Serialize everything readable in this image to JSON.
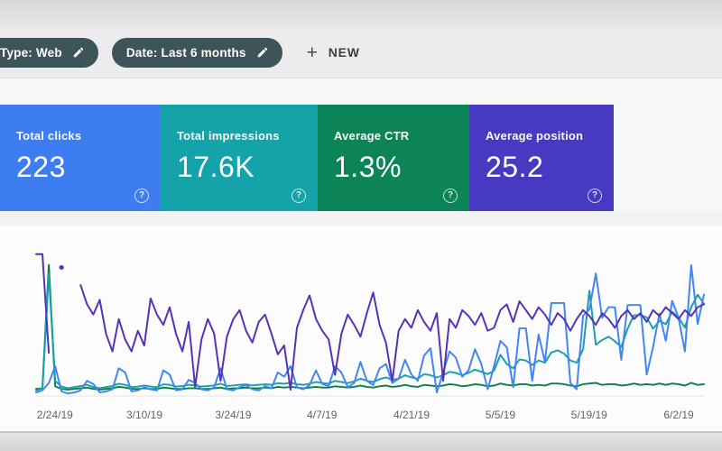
{
  "topbar": {
    "filters": [
      {
        "label": "Type: Web"
      },
      {
        "label": "Date: Last 6 months"
      }
    ],
    "new_button": {
      "label": "NEW",
      "plus_glyph": "+"
    }
  },
  "ui": {
    "help_glyph": "?"
  },
  "cards": [
    {
      "label": "Total clicks",
      "value": "223",
      "color": "#3e7cf2"
    },
    {
      "label": "Total impressions",
      "value": "17.6K",
      "color": "#13a3a8"
    },
    {
      "label": "Average CTR",
      "value": "1.3%",
      "color": "#0d8457"
    },
    {
      "label": "Average position",
      "value": "25.2",
      "color": "#4839c2"
    }
  ],
  "chart_data": {
    "type": "line",
    "x_tick_labels": [
      "2/24/19",
      "3/10/19",
      "3/24/19",
      "4/7/19",
      "4/21/19",
      "5/5/19",
      "5/19/19",
      "6/2/19"
    ],
    "x_tick_day_index": [
      3,
      17,
      31,
      45,
      59,
      73,
      87,
      101
    ],
    "num_points": 106,
    "x_unit": "day (daily points, last 6 months, left part cropped off-screen)",
    "y_axis": "hidden; each series independently auto-scaled as in Search Console",
    "grid": false,
    "legend_position": "none (series colors match metric cards)",
    "draw_order": [
      2,
      1,
      0,
      3
    ],
    "series": [
      {
        "name": "Clicks",
        "color": "#4285f4",
        "axis_max": 14,
        "values": [
          0.3,
          0.5,
          1.2,
          2.8,
          0.4,
          0.2,
          0.3,
          0.5,
          1.4,
          1.1,
          0.3,
          0.4,
          0.6,
          2.6,
          2.2,
          0.4,
          0.5,
          0.8,
          0.6,
          0.5,
          2.4,
          2.0,
          0.5,
          0.6,
          1.5,
          1.2,
          0.6,
          0.5,
          0.8,
          2.6,
          0.6,
          0.5,
          0.8,
          1.0,
          0.6,
          0.5,
          0.9,
          0.7,
          2.2,
          1.8,
          2.8,
          0.8,
          0.6,
          1.0,
          2.4,
          1.1,
          0.9,
          2.8,
          2.2,
          0.8,
          1.2,
          3.2,
          1.4,
          1.0,
          2.6,
          3.0,
          1.2,
          1.6,
          3.4,
          2.0,
          1.4,
          3.8,
          4.5,
          0.3,
          2.2,
          4.2,
          3.6,
          1.8,
          2.4,
          4.4,
          3.0,
          0.6,
          2.8,
          5.2,
          4.6,
          0.8,
          6.4,
          6.4,
          1.4,
          5.8,
          3.2,
          8.8,
          8.8,
          8.8,
          1.2,
          0.6,
          7.6,
          8.2,
          11.6,
          7.4,
          8.4,
          8.4,
          3.4,
          8.6,
          8.6,
          8.6,
          2.0,
          4.6,
          7.8,
          5.2,
          9.0,
          7.4,
          4.2,
          12.4,
          6.8,
          9.6
        ]
      },
      {
        "name": "Impressions",
        "color": "#17a0ac",
        "axis_max": 2600,
        "values": [
          90,
          130,
          2150,
          260,
          160,
          130,
          150,
          170,
          190,
          150,
          130,
          150,
          170,
          210,
          190,
          150,
          160,
          180,
          160,
          150,
          200,
          190,
          160,
          170,
          190,
          180,
          160,
          170,
          180,
          210,
          170,
          180,
          190,
          200,
          180,
          190,
          200,
          190,
          220,
          210,
          230,
          200,
          190,
          210,
          240,
          220,
          210,
          260,
          240,
          220,
          250,
          300,
          260,
          240,
          290,
          320,
          280,
          300,
          360,
          320,
          300,
          380,
          360,
          320,
          360,
          420,
          400,
          360,
          400,
          460,
          420,
          380,
          440,
          720,
          560,
          480,
          640,
          620,
          540,
          620,
          580,
          760,
          800,
          740,
          620,
          580,
          820,
          1850,
          900,
          980,
          1040,
          960,
          860,
          1180,
          1420,
          1420,
          1380,
          1180,
          1320,
          1260,
          1480,
          1380,
          1200,
          1560,
          1780,
          1620
        ]
      },
      {
        "name": "CTR",
        "color": "#0b8043",
        "axis_max": 22,
        "unit": "%",
        "values": [
          1.0,
          1.1,
          19.5,
          1.4,
          1.0,
          0.9,
          1.0,
          1.1,
          1.2,
          1.0,
          0.9,
          1.0,
          1.1,
          1.3,
          1.2,
          1.0,
          1.0,
          1.1,
          1.0,
          1.0,
          1.2,
          1.1,
          1.0,
          1.0,
          1.1,
          1.1,
          1.0,
          1.0,
          1.1,
          1.2,
          1.0,
          1.1,
          1.1,
          1.2,
          1.1,
          1.1,
          1.2,
          1.1,
          1.3,
          1.2,
          1.3,
          1.2,
          1.1,
          1.2,
          1.3,
          1.2,
          1.2,
          1.4,
          1.3,
          1.2,
          1.3,
          1.5,
          1.3,
          1.2,
          1.4,
          1.5,
          1.3,
          1.4,
          1.6,
          1.4,
          1.3,
          1.6,
          1.5,
          1.4,
          1.5,
          1.7,
          1.6,
          1.4,
          1.5,
          1.7,
          1.6,
          1.4,
          1.5,
          1.8,
          1.6,
          1.5,
          1.7,
          1.7,
          1.5,
          1.6,
          1.5,
          1.8,
          1.8,
          1.7,
          1.5,
          1.4,
          1.7,
          1.8,
          1.9,
          1.6,
          1.7,
          1.7,
          1.5,
          1.6,
          1.8,
          1.6,
          1.7,
          1.6,
          1.8,
          1.6,
          1.8,
          1.7,
          1.5,
          1.9,
          1.6,
          1.7
        ]
      },
      {
        "name": "Position",
        "color": "#5632b8",
        "axis_max": 100,
        "values": [
          96,
          96,
          29,
          null,
          87,
          null,
          null,
          75,
          62,
          55,
          65,
          42,
          30,
          52,
          38,
          30,
          44,
          34,
          66,
          55,
          48,
          60,
          42,
          30,
          50,
          6,
          38,
          52,
          42,
          10,
          40,
          52,
          58,
          44,
          36,
          50,
          55,
          42,
          28,
          34,
          4,
          46,
          58,
          68,
          52,
          44,
          38,
          14,
          42,
          55,
          48,
          40,
          56,
          70,
          48,
          36,
          10,
          44,
          52,
          46,
          58,
          50,
          44,
          56,
          10,
          52,
          46,
          58,
          54,
          48,
          56,
          44,
          46,
          58,
          62,
          50,
          64,
          58,
          52,
          60,
          55,
          48,
          56,
          52,
          44,
          52,
          58,
          54,
          48,
          56,
          52,
          46,
          54,
          58,
          52,
          56,
          50,
          58,
          54,
          60,
          56,
          52,
          58,
          54,
          60,
          62
        ]
      }
    ]
  }
}
